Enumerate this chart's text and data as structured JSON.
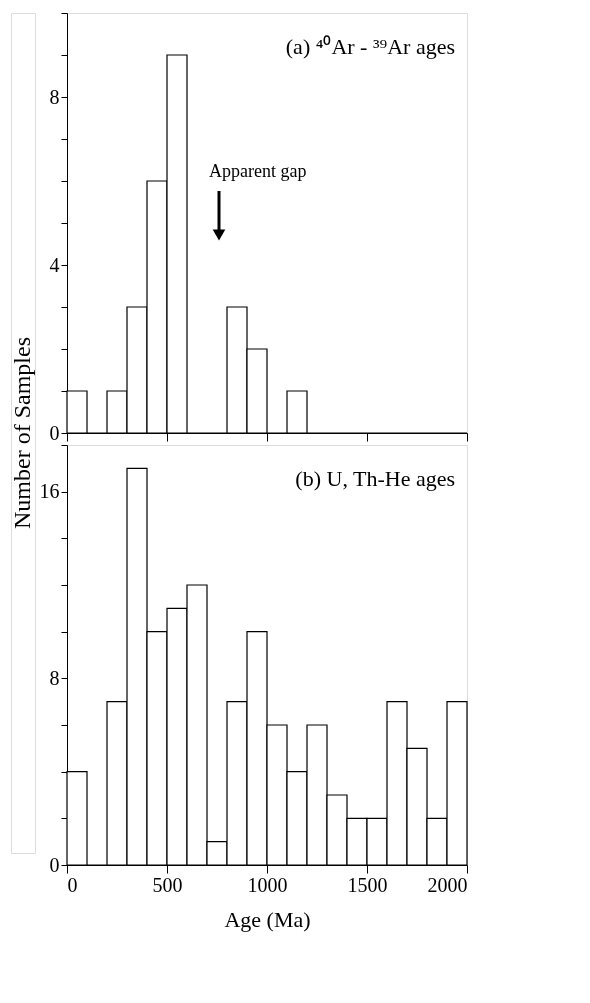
{
  "chart_data": [
    {
      "type": "histogram",
      "title": "(a) ⁴⁰Ar - ³⁹Ar ages",
      "ylabel": "Number of Samples",
      "bins": [
        0,
        100,
        200,
        300,
        400,
        500,
        600,
        700,
        800,
        900,
        1000,
        1100,
        1200,
        1300,
        1400,
        1500,
        1600,
        1700,
        1800,
        1900,
        2000
      ],
      "values": [
        1,
        0,
        1,
        3,
        6,
        9,
        0,
        0,
        3,
        2,
        0,
        1,
        0,
        0,
        0,
        0,
        0,
        0,
        0,
        0
      ],
      "color": "#ffffff",
      "xlim": [
        0,
        2000
      ],
      "xticks": [
        0,
        500,
        1000,
        1500,
        2000
      ],
      "ylim": [
        0,
        10
      ],
      "yticks": [
        0,
        {
          "value": 1,
          "label": null
        },
        {
          "value": 2,
          "label": null
        },
        {
          "value": 3,
          "label": null
        },
        4,
        {
          "value": 5,
          "label": null
        },
        {
          "value": 6,
          "label": null
        },
        {
          "value": 7,
          "label": null
        },
        8,
        {
          "value": 9,
          "label": null
        },
        {
          "value": 10,
          "label": null
        }
      ],
      "tick_labels": "y",
      "grid": false,
      "annotations": [
        "Apparent gap"
      ]
    },
    {
      "type": "histogram",
      "title": "(b)  U, Th-He ages",
      "xlabel": "Age (Ma)",
      "bins": [
        0,
        100,
        200,
        300,
        400,
        500,
        600,
        700,
        800,
        900,
        1000,
        1100,
        1200,
        1300,
        1400,
        1500,
        1600,
        1700,
        1800,
        1900,
        2000
      ],
      "values": [
        4,
        0,
        7,
        17,
        10,
        11,
        12,
        1,
        7,
        10,
        6,
        4,
        6,
        3,
        2,
        2,
        7,
        5,
        2,
        7
      ],
      "color": "#ffffff",
      "xlim": [
        0,
        2000
      ],
      "xticks": [
        0,
        500,
        1000,
        1500,
        2000
      ],
      "ylim": [
        0,
        18
      ],
      "yticks": [
        0,
        {
          "value": 2,
          "label": null
        },
        {
          "value": 4,
          "label": null
        },
        {
          "value": 6,
          "label": null
        },
        8,
        {
          "value": 10,
          "label": null
        },
        {
          "value": 12,
          "label": null
        },
        {
          "value": 14,
          "label": null
        },
        16,
        {
          "value": 18,
          "label": null
        }
      ],
      "grid": false
    }
  ]
}
